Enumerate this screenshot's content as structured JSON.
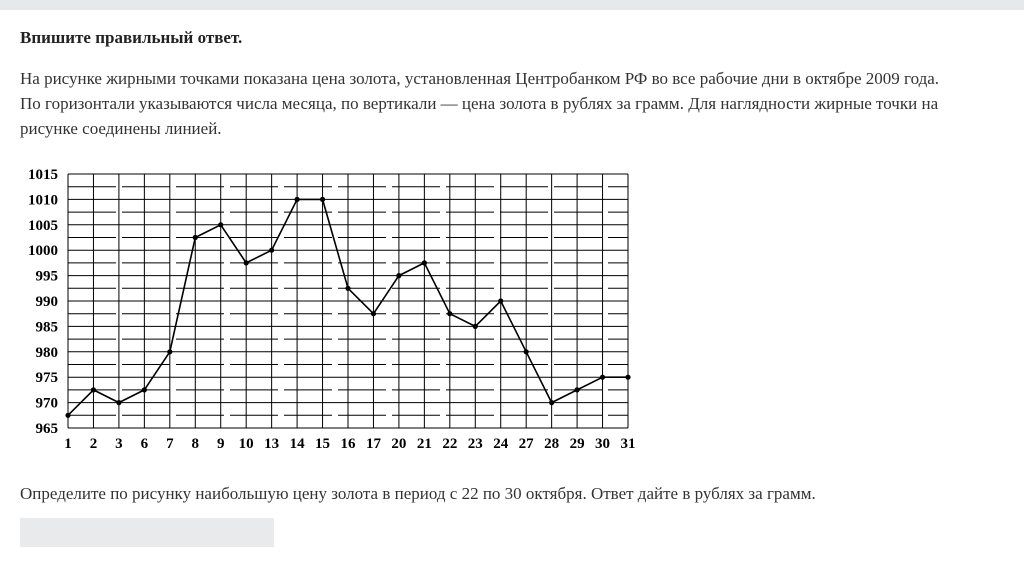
{
  "task": {
    "heading": "Впишите правильный ответ.",
    "lines": [
      "На рисунке жирными точками показана цена золота, установленная Центробанком РФ во все рабочие дни в октябре 2009 года.",
      "По горизонтали указываются числа месяца, по вертикали —  цена золота в рублях за грамм. Для наглядности жирные точки на",
      "рисунке соединены линией."
    ],
    "question": "Определите по рисунку наибольшую цену золота в период с 22 по 30 октября.   Ответ дайте в рублях за грамм.",
    "answer_value": ""
  },
  "chart_data": {
    "type": "line",
    "title": "",
    "xlabel": "",
    "ylabel": "",
    "categories": [
      "1",
      "2",
      "3",
      "6",
      "7",
      "8",
      "9",
      "10",
      "13",
      "14",
      "15",
      "16",
      "17",
      "20",
      "21",
      "22",
      "23",
      "24",
      "27",
      "28",
      "29",
      "30",
      "31"
    ],
    "series": [
      {
        "values": [
          967.5,
          972.5,
          970,
          972.5,
          980,
          1002.5,
          1005,
          997.5,
          1000,
          1010,
          1010,
          992.5,
          987.5,
          995,
          997.5,
          987.5,
          985,
          990,
          980,
          970,
          972.5,
          975,
          975
        ]
      }
    ],
    "y_ticks": [
      "965",
      "970",
      "975",
      "980",
      "985",
      "990",
      "995",
      "1000",
      "1005",
      "1010",
      "1015"
    ],
    "ylim": [
      965,
      1015
    ],
    "grid": true,
    "colors": {
      "line": "#000000",
      "grid": "#000000"
    }
  }
}
